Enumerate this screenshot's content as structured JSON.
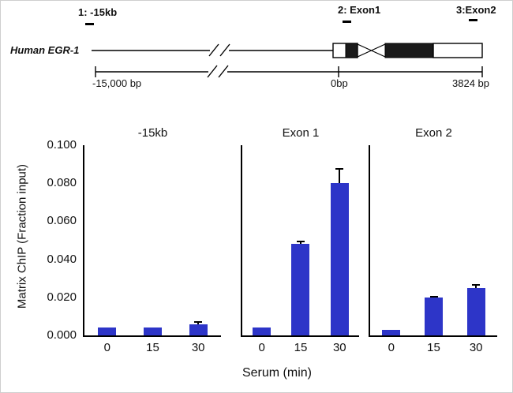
{
  "diagram": {
    "sites": [
      {
        "id": "1",
        "label": "1: -15kb"
      },
      {
        "id": "2",
        "label": "2: Exon1"
      },
      {
        "id": "3",
        "label": "3:Exon2"
      }
    ],
    "gene_name": "Human EGR-1",
    "scale": {
      "left_label": "-15,000 bp",
      "zero_label": "0bp",
      "right_label": "3824 bp"
    }
  },
  "chart_data": {
    "type": "bar",
    "title": "",
    "ylabel": "Matrix ChIP (Fraction input)",
    "xlabel": "Serum (min)",
    "ylim": [
      0,
      0.1
    ],
    "yticks": [
      "0.100",
      "0.080",
      "0.060",
      "0.040",
      "0.020",
      "0.000"
    ],
    "categories": [
      "0",
      "15",
      "30"
    ],
    "bar_color": "#2d35c8",
    "grid": false,
    "legend": false,
    "panels": [
      {
        "title": "-15kb",
        "values": [
          0.004,
          0.004,
          0.006
        ],
        "errors": [
          0,
          0,
          0.0015
        ]
      },
      {
        "title": "Exon 1",
        "values": [
          0.004,
          0.048,
          0.08
        ],
        "errors": [
          0,
          0.002,
          0.008
        ]
      },
      {
        "title": "Exon 2",
        "values": [
          0.003,
          0.02,
          0.025
        ],
        "errors": [
          0,
          0.0008,
          0.002
        ]
      }
    ]
  }
}
